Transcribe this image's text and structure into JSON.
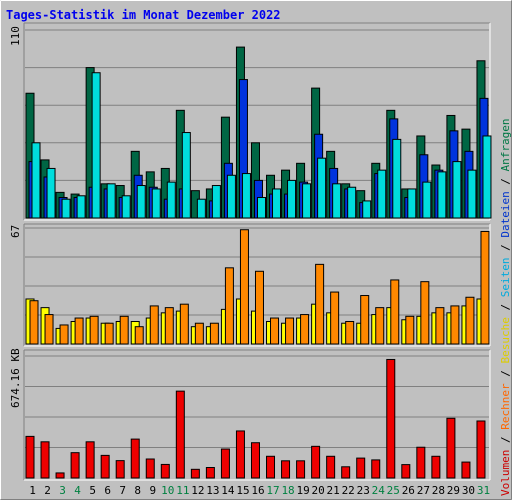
{
  "title": "Tages-Statistik im Monat Dezember 2022",
  "legend": {
    "items": [
      {
        "label": "Volumen",
        "color": "#cc0000"
      },
      {
        "label": "Rechner",
        "color": "#ff6600"
      },
      {
        "label": "Besuche",
        "color": "#ddcc00"
      },
      {
        "label": "Seiten",
        "color": "#00aadd"
      },
      {
        "label": "Dateien",
        "color": "#0033cc"
      },
      {
        "label": "Anfragen",
        "color": "#007744"
      }
    ],
    "separator": " / "
  },
  "colors": {
    "anfragen": "#006644",
    "dateien": "#0033dd",
    "seiten": "#00dddd",
    "besuche": "#ffff00",
    "rechner": "#ff8800",
    "volumen": "#ee0000",
    "weekend_label": "#008040",
    "grid": "#808080"
  },
  "chart_data": [
    {
      "type": "bar",
      "name": "top",
      "ymax_label": "110",
      "ylim": [
        0,
        110
      ],
      "categories": [
        "1",
        "2",
        "3",
        "4",
        "5",
        "6",
        "7",
        "8",
        "9",
        "10",
        "11",
        "12",
        "13",
        "14",
        "15",
        "16",
        "17",
        "18",
        "19",
        "20",
        "21",
        "22",
        "23",
        "24",
        "25",
        "26",
        "27",
        "28",
        "29",
        "30",
        "31"
      ],
      "weekend": [
        3,
        4,
        10,
        11,
        17,
        18,
        24,
        25,
        31
      ],
      "series": [
        {
          "name": "Anfragen",
          "values": [
            73,
            34,
            15,
            14,
            88,
            20,
            19,
            39,
            27,
            29,
            63,
            16,
            17,
            59,
            100,
            44,
            25,
            28,
            32,
            76,
            39,
            20,
            16,
            32,
            63,
            17,
            48,
            31,
            60,
            52,
            92
          ]
        },
        {
          "name": "Dateien",
          "values": [
            33,
            24,
            12,
            12,
            18,
            17,
            12,
            25,
            18,
            11,
            17,
            0,
            10,
            32,
            81,
            22,
            14,
            14,
            21,
            49,
            29,
            17,
            9,
            26,
            58,
            12,
            37,
            28,
            51,
            39,
            70
          ]
        },
        {
          "name": "Seiten",
          "values": [
            44,
            29,
            11,
            13,
            85,
            20,
            13,
            19,
            17,
            21,
            50,
            11,
            19,
            25,
            26,
            12,
            17,
            22,
            20,
            35,
            20,
            18,
            10,
            28,
            46,
            17,
            21,
            27,
            33,
            28,
            48
          ]
        }
      ]
    },
    {
      "type": "bar",
      "name": "middle",
      "ymax_label": "67",
      "ylim": [
        0,
        67
      ],
      "categories": [
        "1",
        "2",
        "3",
        "4",
        "5",
        "6",
        "7",
        "8",
        "9",
        "10",
        "11",
        "12",
        "13",
        "14",
        "15",
        "16",
        "17",
        "18",
        "19",
        "20",
        "21",
        "22",
        "23",
        "24",
        "25",
        "26",
        "27",
        "28",
        "29",
        "30",
        "31"
      ],
      "series": [
        {
          "name": "Besuche",
          "values": [
            26,
            21,
            9,
            13,
            15,
            12,
            13,
            13,
            15,
            18,
            19,
            10,
            10,
            20,
            26,
            19,
            13,
            12,
            15,
            23,
            18,
            12,
            12,
            17,
            21,
            14,
            16,
            18,
            18,
            22,
            26
          ]
        },
        {
          "name": "Rechner",
          "values": [
            25,
            17,
            11,
            15,
            16,
            12,
            16,
            10,
            22,
            21,
            23,
            12,
            12,
            44,
            66,
            42,
            15,
            15,
            17,
            46,
            30,
            13,
            28,
            21,
            37,
            16,
            36,
            21,
            22,
            27,
            65
          ]
        }
      ]
    },
    {
      "type": "bar",
      "name": "bottom",
      "ymax_label": "674.16 KB",
      "ylim": [
        0,
        674.16
      ],
      "categories": [
        "1",
        "2",
        "3",
        "4",
        "5",
        "6",
        "7",
        "8",
        "9",
        "10",
        "11",
        "12",
        "13",
        "14",
        "15",
        "16",
        "17",
        "18",
        "19",
        "20",
        "21",
        "22",
        "23",
        "24",
        "25",
        "26",
        "27",
        "28",
        "29",
        "30",
        "31"
      ],
      "series": [
        {
          "name": "Volumen",
          "values": [
            230,
            200,
            28,
            140,
            200,
            125,
            96,
            215,
            105,
            75,
            480,
            48,
            58,
            160,
            260,
            195,
            120,
            95,
            95,
            175,
            120,
            62,
            110,
            100,
            655,
            74,
            170,
            120,
            330,
            88,
            315
          ]
        }
      ]
    }
  ]
}
